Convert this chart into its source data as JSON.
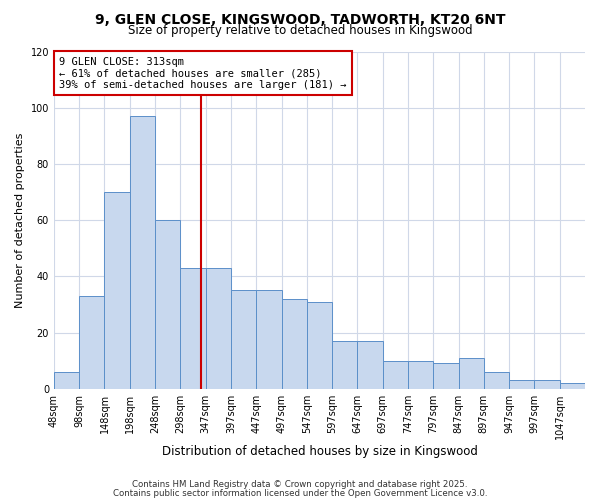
{
  "title_line1": "9, GLEN CLOSE, KINGSWOOD, TADWORTH, KT20 6NT",
  "title_line2": "Size of property relative to detached houses in Kingswood",
  "xlabel": "Distribution of detached houses by size in Kingswood",
  "ylabel": "Number of detached properties",
  "bar_labels": [
    "48sqm",
    "98sqm",
    "148sqm",
    "198sqm",
    "248sqm",
    "298sqm",
    "347sqm",
    "397sqm",
    "447sqm",
    "497sqm",
    "547sqm",
    "597sqm",
    "647sqm",
    "697sqm",
    "747sqm",
    "797sqm",
    "847sqm",
    "897sqm",
    "947sqm",
    "997sqm",
    "1047sqm"
  ],
  "bar_values": [
    6,
    33,
    70,
    97,
    60,
    43,
    43,
    35,
    35,
    32,
    31,
    17,
    17,
    10,
    10,
    9,
    11,
    6,
    3,
    3,
    2
  ],
  "bar_color": "#c8d8ee",
  "bar_edge_color": "#5b8fc9",
  "property_size": 313,
  "vline_color": "#cc0000",
  "annotation_line1": "9 GLEN CLOSE: 313sqm",
  "annotation_line2": "← 61% of detached houses are smaller (285)",
  "annotation_line3": "39% of semi-detached houses are larger (181) →",
  "annotation_box_color": "#ffffff",
  "annotation_box_edge_color": "#cc0000",
  "ylim": [
    0,
    120
  ],
  "yticks": [
    0,
    20,
    40,
    60,
    80,
    100,
    120
  ],
  "background_color": "#ffffff",
  "grid_color": "#d0d8e8",
  "footer_line1": "Contains HM Land Registry data © Crown copyright and database right 2025.",
  "footer_line2": "Contains public sector information licensed under the Open Government Licence v3.0."
}
